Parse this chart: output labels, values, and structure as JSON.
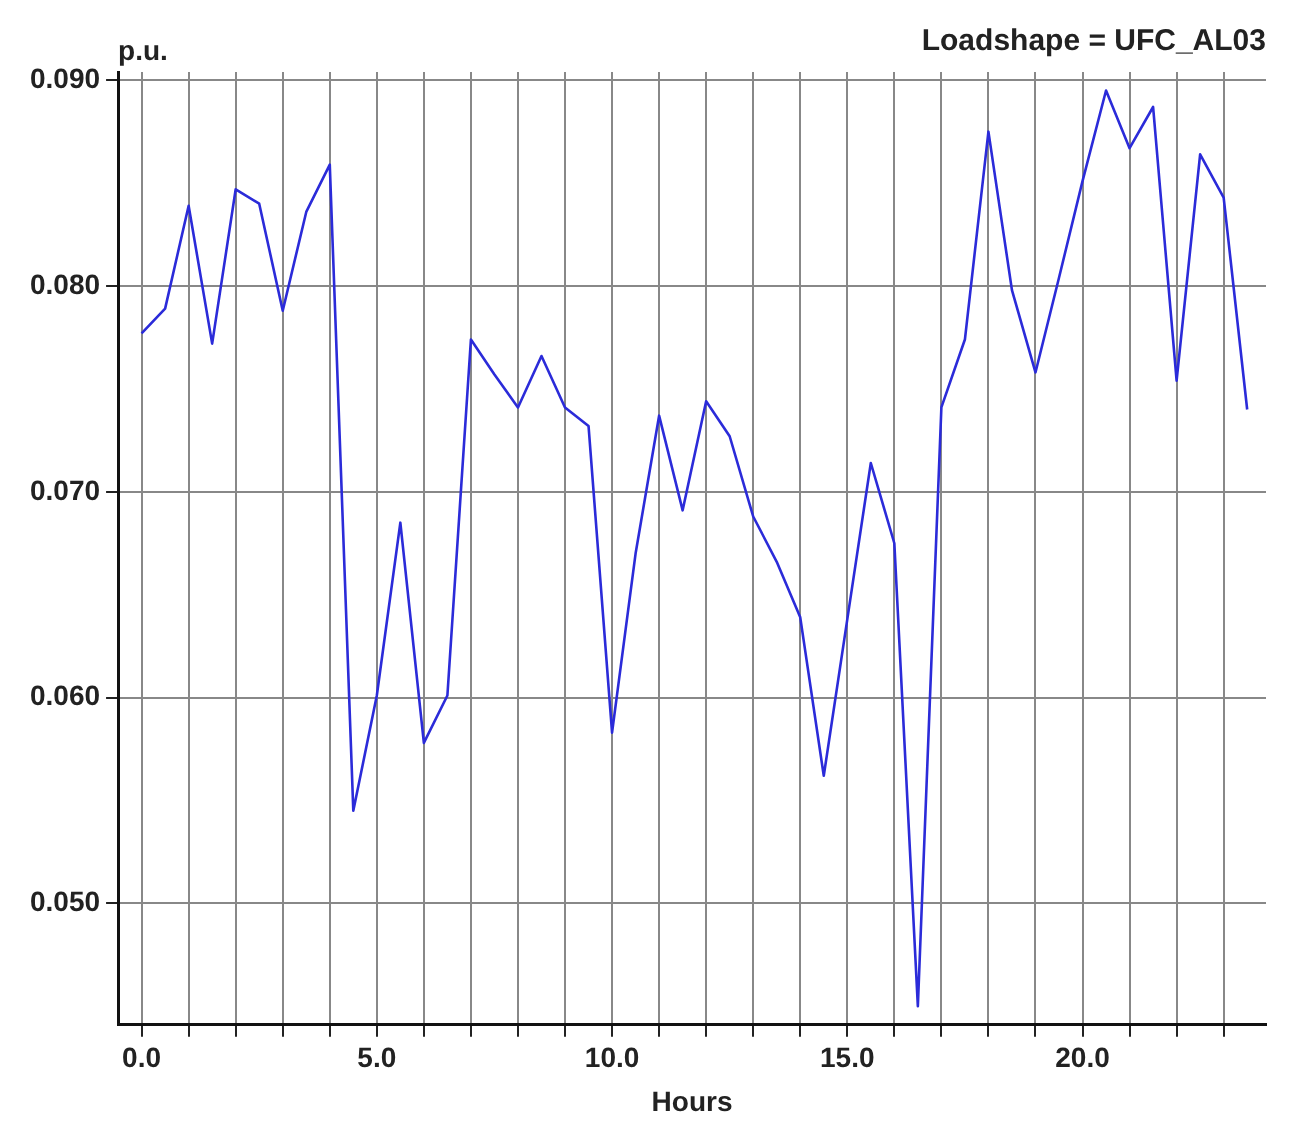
{
  "chart_data": {
    "type": "line",
    "title": "Loadshape = UFC_AL03",
    "xlabel": "Hours",
    "ylabel": "p.u.",
    "x": [
      0,
      0.5,
      1,
      1.5,
      2,
      2.5,
      3,
      3.5,
      4,
      4.5,
      5,
      5.5,
      6,
      6.5,
      7,
      7.5,
      8,
      8.5,
      9,
      9.5,
      10,
      10.5,
      11,
      11.5,
      12,
      12.5,
      13,
      13.5,
      14,
      14.5,
      15,
      15.5,
      16,
      16.5,
      17,
      17.5,
      18,
      18.5,
      19,
      19.5,
      20,
      20.5,
      21,
      21.5,
      22,
      22.5,
      23,
      23.5
    ],
    "series": [
      {
        "color": "#2b2bd9",
        "values": [
          0.0777,
          0.0789,
          0.0839,
          0.0772,
          0.0847,
          0.084,
          0.0788,
          0.0836,
          0.0859,
          0.0545,
          0.0601,
          0.0685,
          0.0578,
          0.0601,
          0.0774,
          0.0757,
          0.0741,
          0.0766,
          0.0741,
          0.0732,
          0.0583,
          0.067,
          0.0737,
          0.0691,
          0.0744,
          0.0727,
          0.0688,
          0.0666,
          0.0639,
          0.0562,
          0.0638,
          0.0714,
          0.0675,
          0.045,
          0.0741,
          0.0774,
          0.0875,
          0.0798,
          0.0758,
          0.0804,
          0.0851,
          0.0895,
          0.0867,
          0.0887,
          0.0754,
          0.0864,
          0.0843,
          0.074
        ]
      }
    ],
    "xlim": [
      -0.5,
      23.9
    ],
    "ylim": [
      0.0441,
      0.0904
    ],
    "xticks": [
      {
        "value": 0,
        "label": "0.0"
      },
      {
        "value": 1,
        "label": null
      },
      {
        "value": 2,
        "label": null
      },
      {
        "value": 3,
        "label": null
      },
      {
        "value": 4,
        "label": null
      },
      {
        "value": 5,
        "label": "5.0"
      },
      {
        "value": 6,
        "label": null
      },
      {
        "value": 7,
        "label": null
      },
      {
        "value": 8,
        "label": null
      },
      {
        "value": 9,
        "label": null
      },
      {
        "value": 10,
        "label": "10.0"
      },
      {
        "value": 11,
        "label": null
      },
      {
        "value": 12,
        "label": null
      },
      {
        "value": 13,
        "label": null
      },
      {
        "value": 14,
        "label": null
      },
      {
        "value": 15,
        "label": "15.0"
      },
      {
        "value": 16,
        "label": null
      },
      {
        "value": 17,
        "label": null
      },
      {
        "value": 18,
        "label": null
      },
      {
        "value": 19,
        "label": null
      },
      {
        "value": 20,
        "label": "20.0"
      },
      {
        "value": 21,
        "label": null
      },
      {
        "value": 22,
        "label": null
      },
      {
        "value": 23,
        "label": null
      }
    ],
    "yticks": [
      {
        "value": 0.05,
        "label": "0.050"
      },
      {
        "value": 0.06,
        "label": "0.060"
      },
      {
        "value": 0.07,
        "label": "0.070"
      },
      {
        "value": 0.08,
        "label": "0.080"
      },
      {
        "value": 0.09,
        "label": "0.090"
      }
    ],
    "grid": true,
    "legend": false,
    "marker": "none",
    "line_style": "solid"
  }
}
